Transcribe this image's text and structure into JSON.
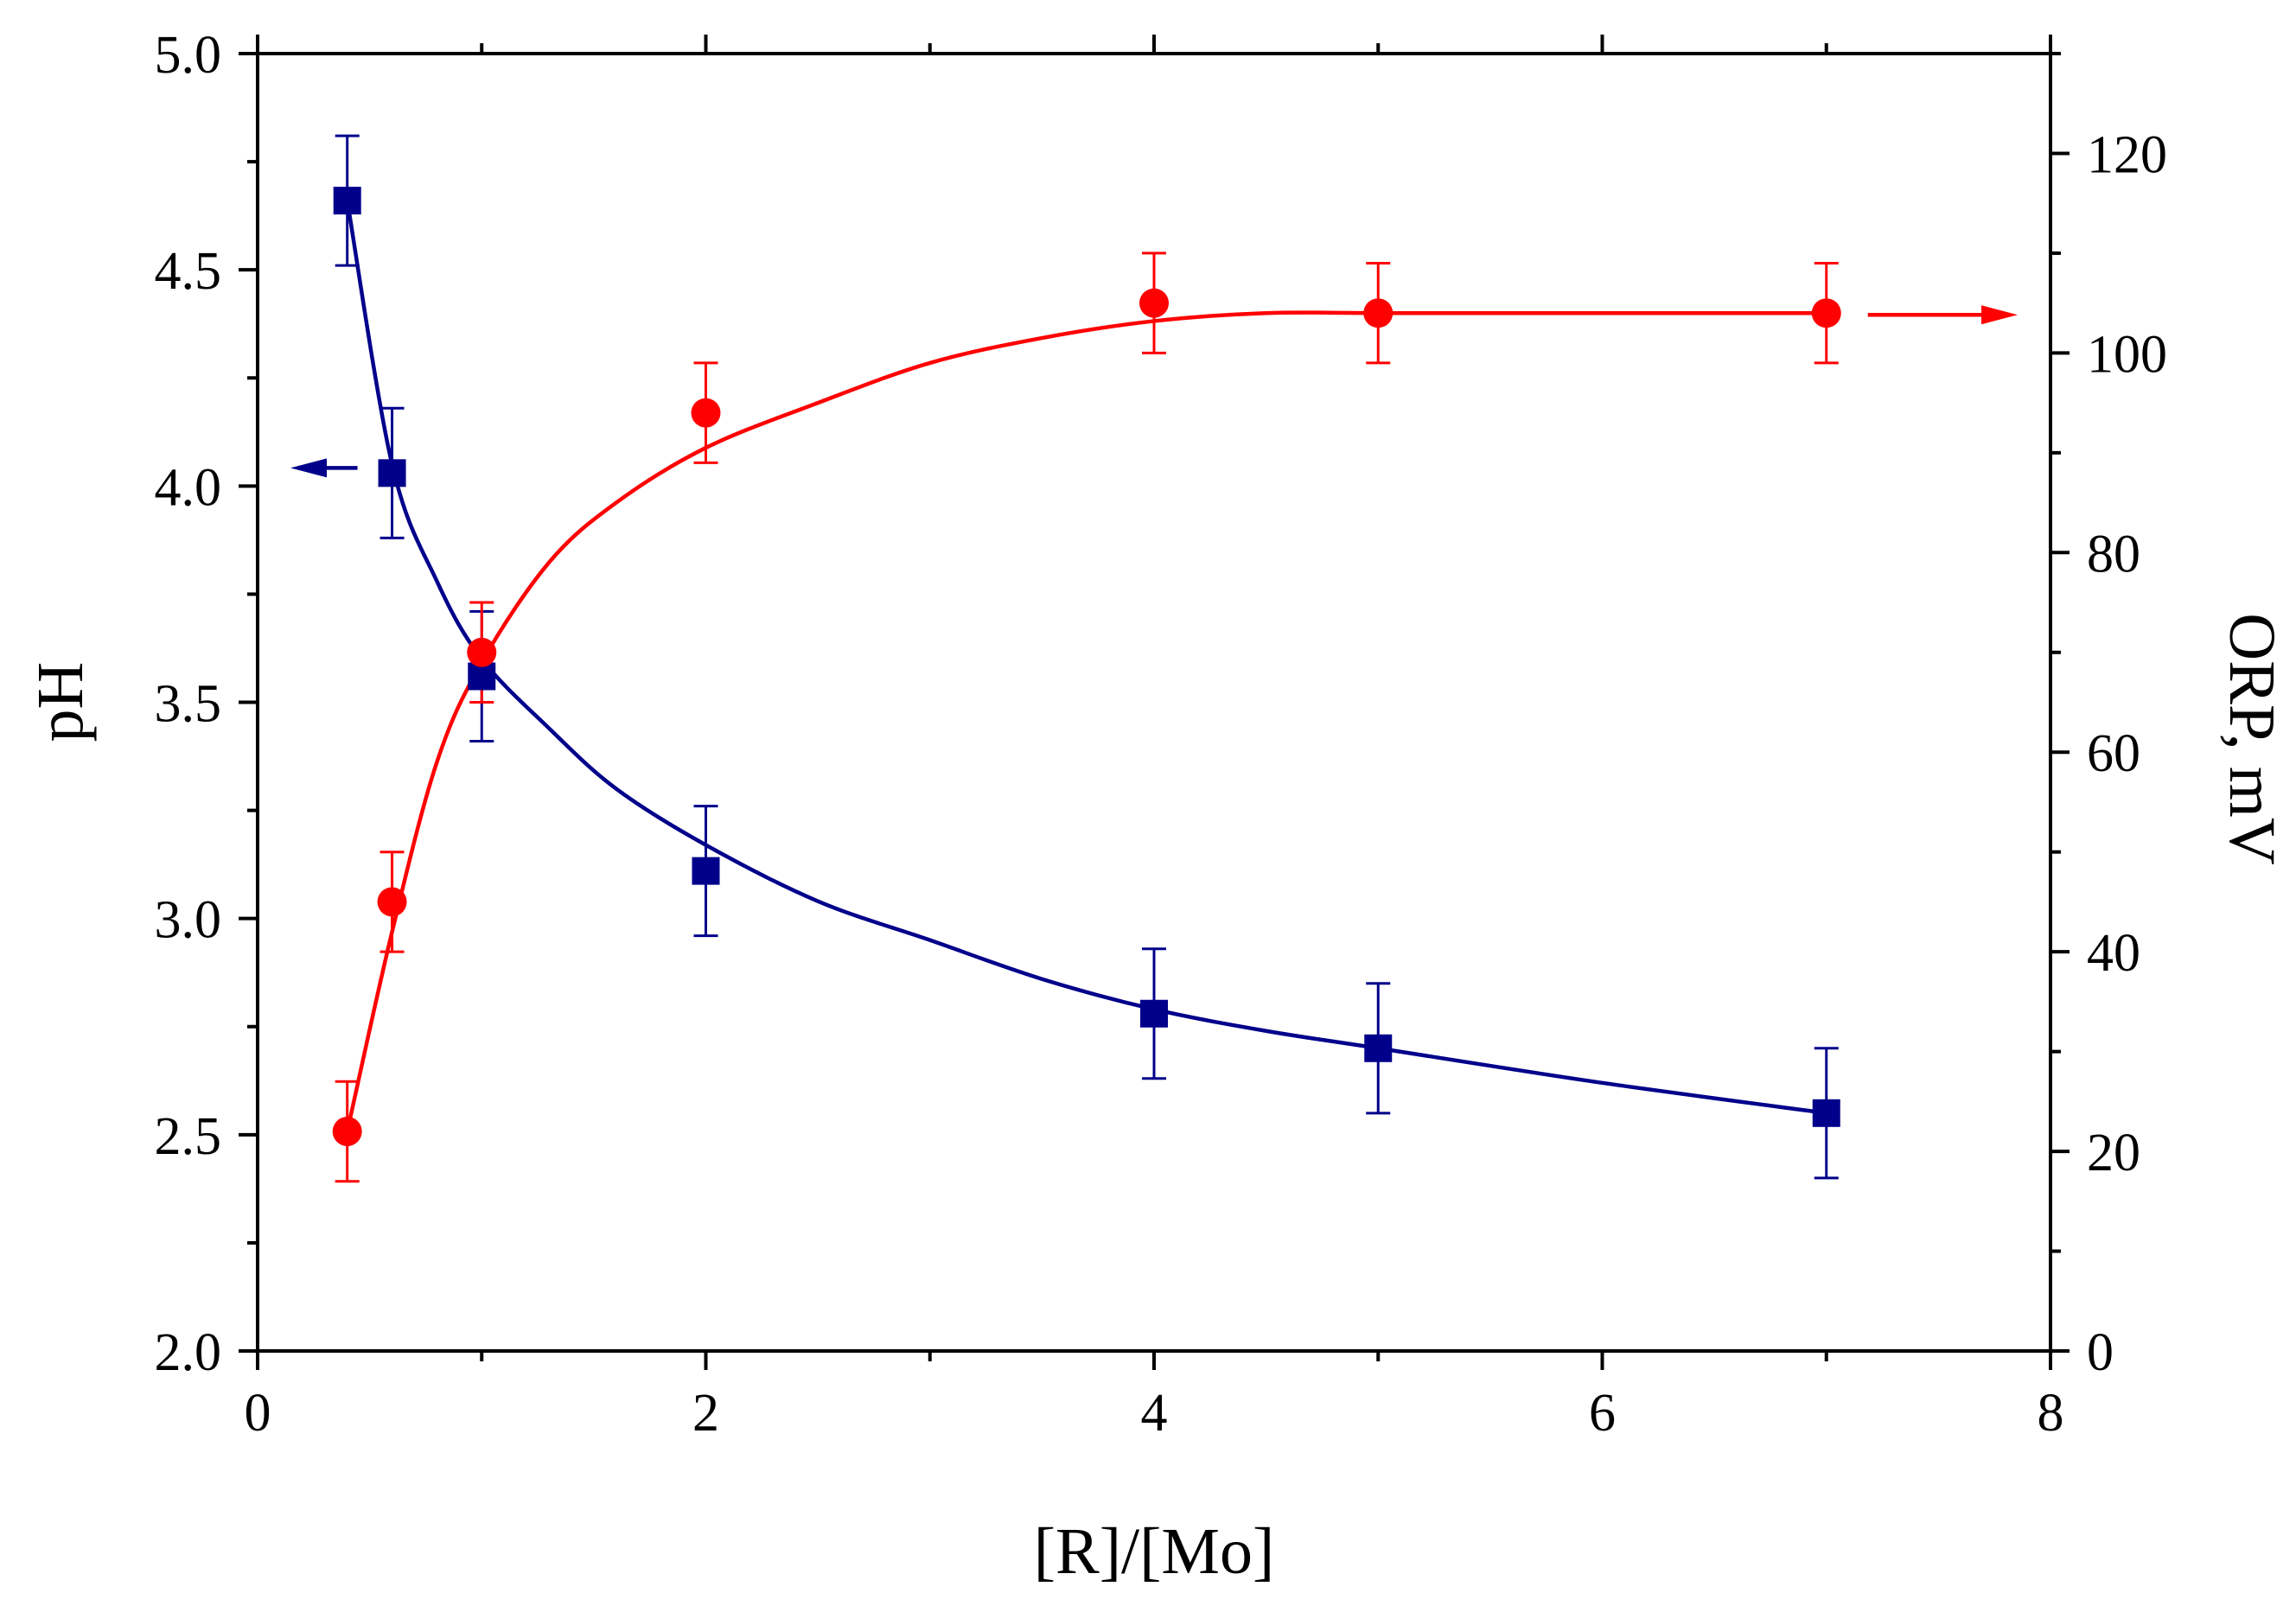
{
  "chart_data": {
    "type": "scatter",
    "title": "",
    "xlabel": "[R]/[Mo]",
    "ylabel_left": "pH",
    "ylabel_right": "ORP, mV",
    "xlim": [
      0,
      8
    ],
    "ylim_left": [
      2.0,
      5.0
    ],
    "ylim_right": [
      0,
      130
    ],
    "x_ticks": [
      "0",
      "2",
      "4",
      "6",
      "8"
    ],
    "y_left_ticks": [
      "2.0",
      "2.5",
      "3.0",
      "3.5",
      "4.0",
      "4.5",
      "5.0"
    ],
    "y_right_ticks": [
      "0",
      "20",
      "40",
      "60",
      "80",
      "100",
      "120"
    ],
    "grid": false,
    "series": [
      {
        "name": "pH",
        "axis": "left",
        "marker": "square",
        "color": "#00008B",
        "x": [
          0.4,
          0.6,
          1.0,
          2.0,
          4.0,
          5.0,
          7.0
        ],
        "values": [
          4.66,
          4.03,
          3.56,
          3.11,
          2.78,
          2.7,
          2.55
        ],
        "error": [
          0.15,
          0.15,
          0.15,
          0.15,
          0.15,
          0.15,
          0.15
        ],
        "fit_curve": {
          "x": [
            0.4,
            0.6,
            0.8,
            1.0,
            1.3,
            1.6,
            2.0,
            2.5,
            3.0,
            3.5,
            4.0,
            4.5,
            5.0,
            6.0,
            7.0
          ],
          "y": [
            4.66,
            4.05,
            3.78,
            3.6,
            3.44,
            3.3,
            3.17,
            3.04,
            2.95,
            2.86,
            2.79,
            2.74,
            2.7,
            2.62,
            2.55
          ]
        },
        "arrow_direction": "left"
      },
      {
        "name": "ORP",
        "axis": "right",
        "marker": "circle",
        "color": "#FF0000",
        "x": [
          0.4,
          0.6,
          1.0,
          2.0,
          4.0,
          5.0,
          7.0
        ],
        "values": [
          22,
          45,
          70,
          94,
          105,
          104,
          104
        ],
        "error": [
          5,
          5,
          5,
          5,
          5,
          5,
          5
        ],
        "fit_curve": {
          "x": [
            0.4,
            0.6,
            0.8,
            1.0,
            1.3,
            1.6,
            2.0,
            2.5,
            3.0,
            3.5,
            4.0,
            4.5,
            5.0,
            6.0,
            7.0
          ],
          "y": [
            22,
            42,
            59,
            69,
            79,
            85,
            90.5,
            95,
            99,
            101.5,
            103.2,
            104,
            104,
            104,
            104
          ]
        },
        "arrow_direction": "right"
      }
    ]
  }
}
